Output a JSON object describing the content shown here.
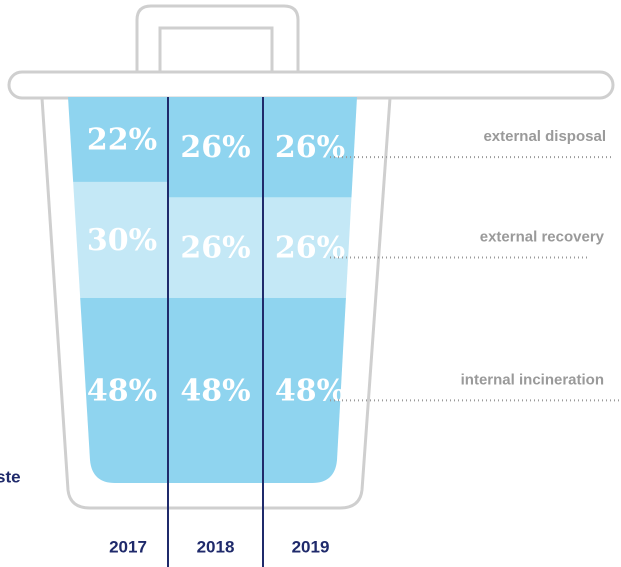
{
  "chart_data": {
    "type": "bar",
    "stacked": true,
    "annotation": "ste",
    "categories": [
      "2017",
      "2018",
      "2019"
    ],
    "series": [
      {
        "name": "internal incineration",
        "color": "#8fd4ef",
        "values": [
          48,
          48,
          48
        ],
        "value_labels": [
          "48%",
          "48%",
          "48%"
        ]
      },
      {
        "name": "external recovery",
        "color": "#c4e8f6",
        "values": [
          30,
          26,
          26
        ],
        "value_labels": [
          "30%",
          "26%",
          "26%"
        ]
      },
      {
        "name": "external disposal",
        "color": "#8fd4ef",
        "values": [
          22,
          26,
          26
        ],
        "value_labels": [
          "22%",
          "26%",
          "26%"
        ]
      }
    ]
  }
}
